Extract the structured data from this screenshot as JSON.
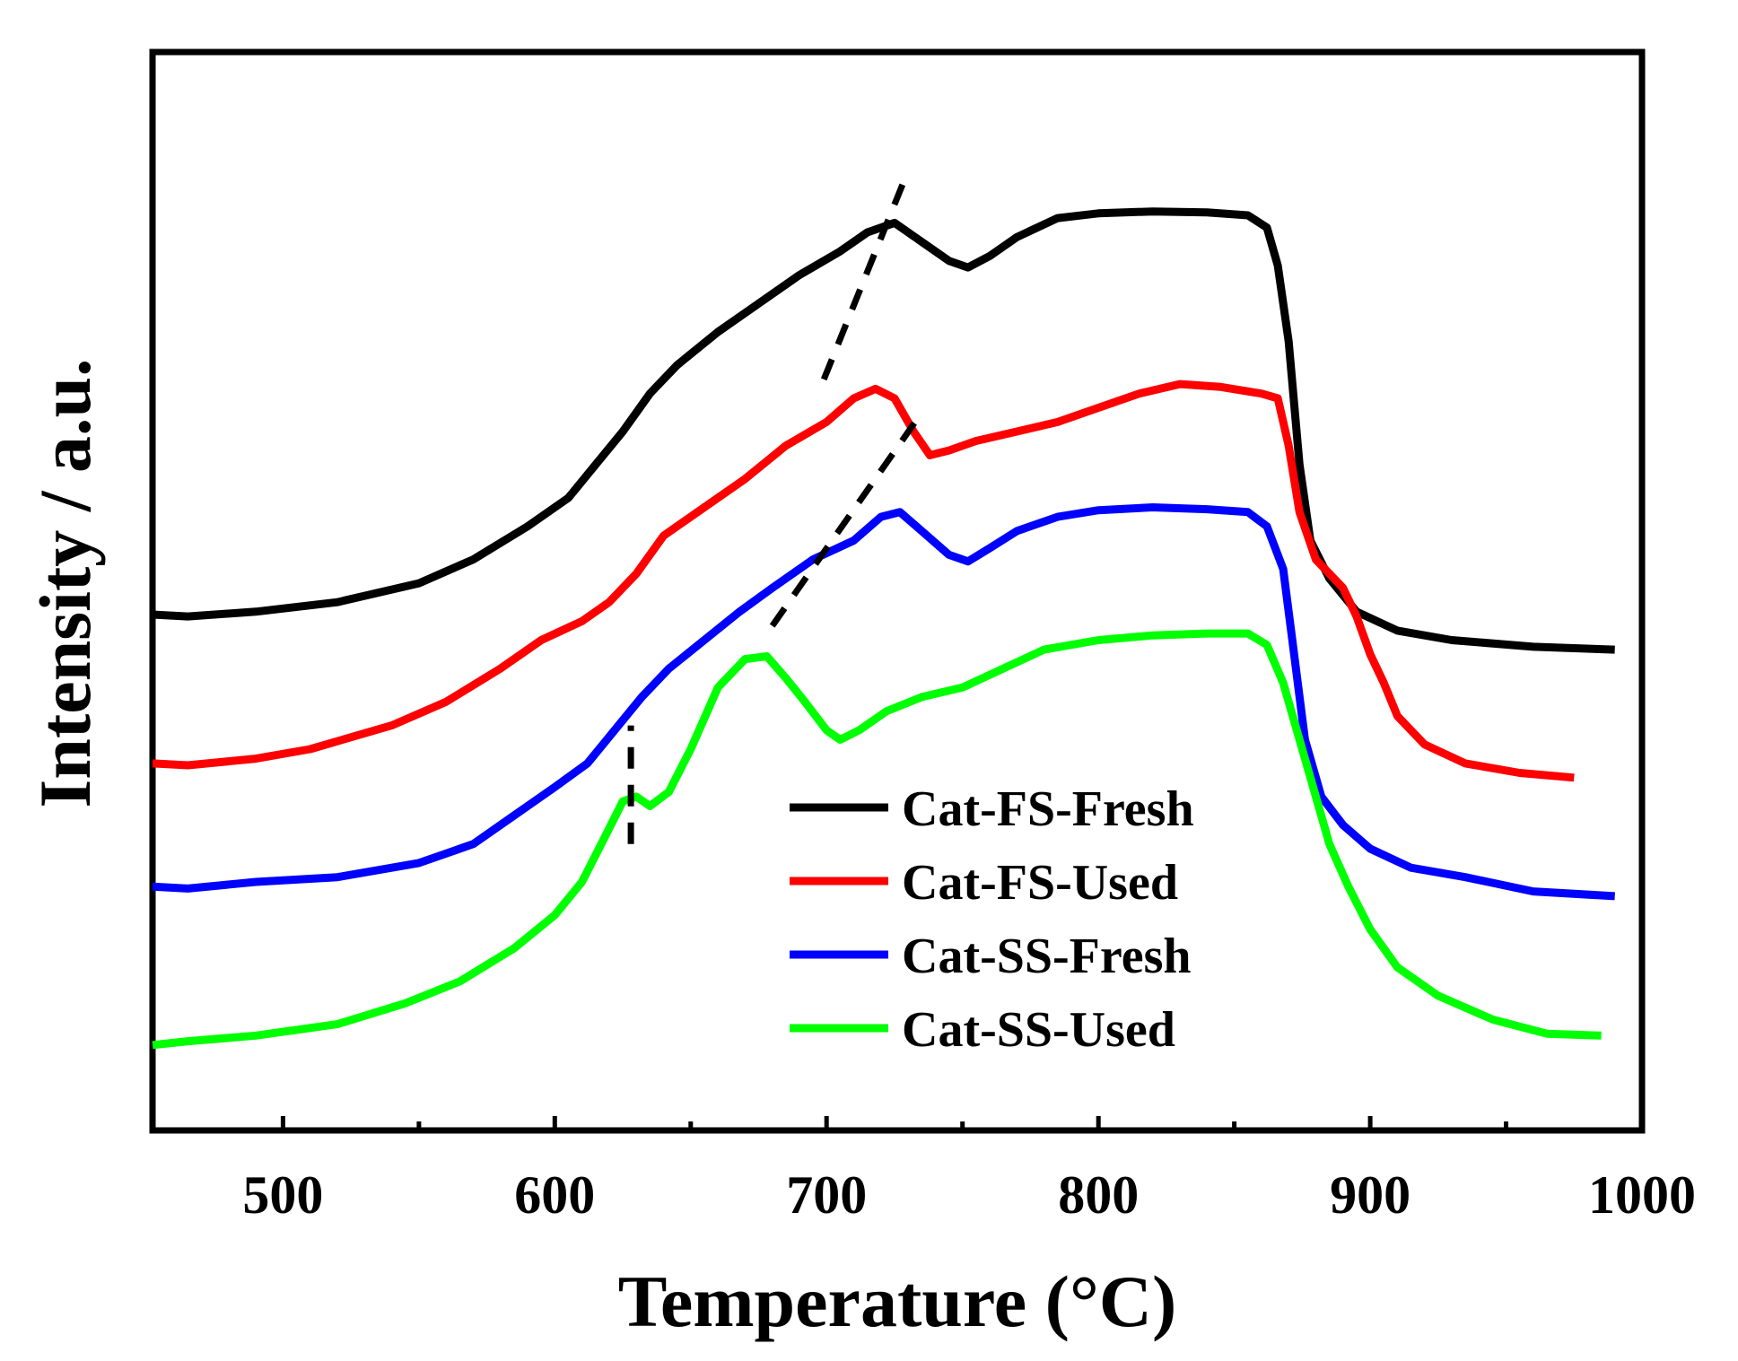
{
  "chart_data": {
    "type": "line",
    "title": "",
    "xlabel": "Temperature (°C)",
    "ylabel": "Intensity / a.u.",
    "xlim": [
      452,
      1000
    ],
    "ylim": [
      0,
      100
    ],
    "x_ticks": [
      500,
      600,
      700,
      800,
      900,
      1000
    ],
    "x_tick_labels": [
      "500",
      "600",
      "700",
      "800",
      "900",
      "1000"
    ],
    "y_ticks_shown": false,
    "grid": false,
    "legend_position": "lower-center",
    "series": [
      {
        "name": "Cat-FS-Fresh",
        "color": "#000000",
        "points": [
          [
            452,
            49.2
          ],
          [
            465,
            49
          ],
          [
            490,
            49.5
          ],
          [
            520,
            50.5
          ],
          [
            550,
            52.5
          ],
          [
            570,
            55
          ],
          [
            590,
            58.5
          ],
          [
            605,
            61.5
          ],
          [
            615,
            65
          ],
          [
            625,
            68.5
          ],
          [
            635,
            72.5
          ],
          [
            645,
            75.5
          ],
          [
            660,
            79
          ],
          [
            675,
            82
          ],
          [
            690,
            85
          ],
          [
            705,
            87.5
          ],
          [
            715,
            89.5
          ],
          [
            725,
            90.5
          ],
          [
            735,
            88.5
          ],
          [
            745,
            86.5
          ],
          [
            752,
            85.8
          ],
          [
            760,
            87
          ],
          [
            770,
            89
          ],
          [
            785,
            91
          ],
          [
            800,
            91.5
          ],
          [
            820,
            91.7
          ],
          [
            840,
            91.6
          ],
          [
            855,
            91.3
          ],
          [
            862,
            90
          ],
          [
            866,
            86
          ],
          [
            870,
            78
          ],
          [
            874,
            65
          ],
          [
            878,
            57
          ],
          [
            885,
            53
          ],
          [
            895,
            49.5
          ],
          [
            910,
            47.5
          ],
          [
            930,
            46.5
          ],
          [
            960,
            45.8
          ],
          [
            990,
            45.5
          ]
        ]
      },
      {
        "name": "Cat-FS-Used",
        "color": "#ff0000",
        "points": [
          [
            452,
            33.5
          ],
          [
            465,
            33.3
          ],
          [
            490,
            34
          ],
          [
            510,
            35
          ],
          [
            540,
            37.5
          ],
          [
            560,
            40
          ],
          [
            580,
            43.5
          ],
          [
            595,
            46.5
          ],
          [
            610,
            48.5
          ],
          [
            620,
            50.5
          ],
          [
            630,
            53.5
          ],
          [
            640,
            57.5
          ],
          [
            655,
            60.5
          ],
          [
            670,
            63.5
          ],
          [
            685,
            67
          ],
          [
            700,
            69.5
          ],
          [
            710,
            72
          ],
          [
            718,
            73
          ],
          [
            725,
            72
          ],
          [
            732,
            68.5
          ],
          [
            738,
            66
          ],
          [
            745,
            66.5
          ],
          [
            755,
            67.5
          ],
          [
            770,
            68.5
          ],
          [
            785,
            69.5
          ],
          [
            800,
            71
          ],
          [
            815,
            72.5
          ],
          [
            830,
            73.5
          ],
          [
            845,
            73.2
          ],
          [
            860,
            72.5
          ],
          [
            866,
            72
          ],
          [
            870,
            67
          ],
          [
            874,
            60
          ],
          [
            880,
            55
          ],
          [
            890,
            52
          ],
          [
            895,
            49
          ],
          [
            900,
            45
          ],
          [
            905,
            42
          ],
          [
            910,
            38.5
          ],
          [
            920,
            35.5
          ],
          [
            935,
            33.5
          ],
          [
            955,
            32.5
          ],
          [
            975,
            32
          ]
        ]
      },
      {
        "name": "Cat-SS-Fresh",
        "color": "#0000ff",
        "points": [
          [
            452,
            20.5
          ],
          [
            465,
            20.3
          ],
          [
            490,
            21
          ],
          [
            520,
            21.5
          ],
          [
            550,
            23
          ],
          [
            570,
            25
          ],
          [
            585,
            28
          ],
          [
            600,
            31
          ],
          [
            612,
            33.5
          ],
          [
            622,
            37
          ],
          [
            632,
            40.5
          ],
          [
            642,
            43.5
          ],
          [
            655,
            46.5
          ],
          [
            668,
            49.5
          ],
          [
            680,
            52
          ],
          [
            695,
            55
          ],
          [
            710,
            57
          ],
          [
            720,
            59.5
          ],
          [
            727,
            60
          ],
          [
            735,
            58
          ],
          [
            745,
            55.5
          ],
          [
            752,
            54.8
          ],
          [
            760,
            56.2
          ],
          [
            770,
            58
          ],
          [
            785,
            59.5
          ],
          [
            800,
            60.2
          ],
          [
            820,
            60.5
          ],
          [
            840,
            60.3
          ],
          [
            855,
            60
          ],
          [
            862,
            58.5
          ],
          [
            868,
            54
          ],
          [
            872,
            45
          ],
          [
            876,
            36
          ],
          [
            882,
            30
          ],
          [
            890,
            27
          ],
          [
            900,
            24.5
          ],
          [
            915,
            22.5
          ],
          [
            935,
            21.5
          ],
          [
            960,
            20
          ],
          [
            990,
            19.5
          ]
        ]
      },
      {
        "name": "Cat-SS-Used",
        "color": "#00ff00",
        "points": [
          [
            452,
            3.8
          ],
          [
            465,
            4.2
          ],
          [
            490,
            4.8
          ],
          [
            520,
            6
          ],
          [
            545,
            8.2
          ],
          [
            565,
            10.5
          ],
          [
            585,
            14
          ],
          [
            600,
            17.5
          ],
          [
            610,
            21
          ],
          [
            618,
            25.5
          ],
          [
            625,
            29.5
          ],
          [
            630,
            30
          ],
          [
            635,
            29
          ],
          [
            642,
            30.5
          ],
          [
            650,
            35
          ],
          [
            660,
            41.5
          ],
          [
            670,
            44.5
          ],
          [
            678,
            44.8
          ],
          [
            685,
            42.5
          ],
          [
            692,
            40
          ],
          [
            700,
            37
          ],
          [
            705,
            36
          ],
          [
            712,
            37
          ],
          [
            722,
            39
          ],
          [
            735,
            40.5
          ],
          [
            750,
            41.5
          ],
          [
            765,
            43.5
          ],
          [
            780,
            45.5
          ],
          [
            800,
            46.5
          ],
          [
            820,
            47
          ],
          [
            840,
            47.2
          ],
          [
            855,
            47.2
          ],
          [
            862,
            46
          ],
          [
            868,
            42
          ],
          [
            874,
            36
          ],
          [
            880,
            30
          ],
          [
            885,
            25
          ],
          [
            892,
            20.5
          ],
          [
            900,
            16
          ],
          [
            910,
            12
          ],
          [
            925,
            9
          ],
          [
            945,
            6.5
          ],
          [
            965,
            5
          ],
          [
            985,
            4.8
          ]
        ]
      }
    ],
    "annotations": [
      {
        "type": "dashed-line",
        "color": "#000000",
        "from": [
          699,
          74
        ],
        "to": [
          730,
          96
        ]
      },
      {
        "type": "dashed-line",
        "color": "#000000",
        "from": [
          680,
          48
        ],
        "to": [
          735,
          70.5
        ]
      },
      {
        "type": "dashed-line",
        "color": "#000000",
        "from": [
          628,
          25
        ],
        "to": [
          628,
          37.5
        ]
      }
    ]
  }
}
